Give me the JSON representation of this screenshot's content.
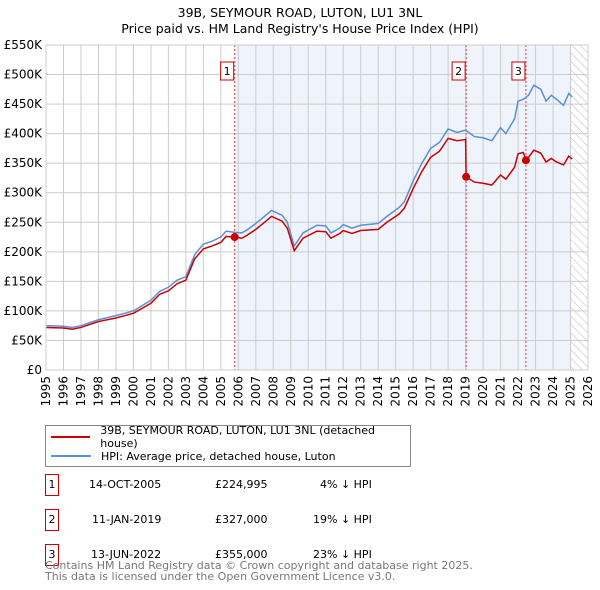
{
  "title": "39B, SEYMOUR ROAD, LUTON, LU1 3NL",
  "subtitle": "Price paid vs. HM Land Registry's House Price Index (HPI)",
  "chart_data": {
    "type": "line",
    "title": "39B, SEYMOUR ROAD, LUTON, LU1 3NL",
    "subtitle": "Price paid vs. HM Land Registry's House Price Index (HPI)",
    "xlim": [
      1995,
      2026
    ],
    "ylim": [
      0,
      550000
    ],
    "yticks": [
      0,
      50000,
      100000,
      150000,
      200000,
      250000,
      300000,
      350000,
      400000,
      450000,
      500000,
      550000
    ],
    "ytick_labels": [
      "£0",
      "£50K",
      "£100K",
      "£150K",
      "£200K",
      "£250K",
      "£300K",
      "£350K",
      "£400K",
      "£450K",
      "£500K",
      "£550K"
    ],
    "xticks": [
      "1995",
      "1996",
      "1997",
      "1998",
      "1999",
      "2000",
      "2001",
      "2002",
      "2003",
      "2004",
      "2005",
      "2006",
      "2007",
      "2008",
      "2009",
      "2010",
      "2011",
      "2012",
      "2013",
      "2014",
      "2015",
      "2016",
      "2017",
      "2018",
      "2019",
      "2020",
      "2021",
      "2022",
      "2023",
      "2024",
      "2025",
      "2026"
    ],
    "grid": true,
    "series": [
      {
        "name": "HPI: Average price, detached house, Luton",
        "color": "#5b8fd4",
        "x": [
          1995,
          1996,
          1996.5,
          1997,
          1998,
          1999,
          2000,
          2001,
          2001.5,
          2002,
          2002.5,
          2003,
          2003.5,
          2004,
          2004.5,
          2005,
          2005.3,
          2005.8,
          2006.2,
          2006.5,
          2007,
          2007.5,
          2007.9,
          2008.5,
          2008.8,
          2009.2,
          2009.7,
          2010.5,
          2011,
          2011.3,
          2011.8,
          2012,
          2012.5,
          2013,
          2014,
          2014.5,
          2015.2,
          2015.5,
          2016,
          2016.5,
          2017,
          2017.5,
          2018,
          2018.5,
          2019,
          2019.5,
          2020,
          2020.5,
          2021,
          2021.3,
          2021.8,
          2022,
          2022.3,
          2022.6,
          2022.9,
          2023.3,
          2023.6,
          2023.9,
          2024.2,
          2024.6,
          2024.9,
          2025.1
        ],
        "y": [
          75000,
          74000,
          72000,
          75000,
          85000,
          92000,
          100000,
          118000,
          133000,
          140000,
          152000,
          158000,
          195000,
          213000,
          218000,
          225000,
          235000,
          233000,
          232000,
          237000,
          248000,
          260000,
          270000,
          262000,
          250000,
          210000,
          232000,
          245000,
          244000,
          232000,
          240000,
          246000,
          240000,
          245000,
          248000,
          260000,
          275000,
          285000,
          320000,
          350000,
          375000,
          385000,
          408000,
          402000,
          406000,
          395000,
          393000,
          388000,
          410000,
          400000,
          425000,
          455000,
          458000,
          465000,
          482000,
          475000,
          455000,
          465000,
          458000,
          448000,
          468000,
          462000
        ]
      },
      {
        "name": "39B, SEYMOUR ROAD, LUTON, LU1 3NL (detached house)",
        "color": "#cc0000",
        "x": [
          1995,
          1996,
          1996.5,
          1997,
          1998,
          1999,
          2000,
          2001,
          2001.5,
          2002,
          2002.5,
          2003,
          2003.5,
          2004,
          2004.5,
          2005,
          2005.3,
          2005.79,
          2006.2,
          2006.5,
          2007,
          2007.5,
          2007.9,
          2008.5,
          2008.8,
          2009.2,
          2009.7,
          2010.5,
          2011,
          2011.3,
          2011.8,
          2012,
          2012.5,
          2013,
          2014,
          2014.5,
          2015.2,
          2015.5,
          2016,
          2016.5,
          2017,
          2017.5,
          2018,
          2018.5,
          2019.0,
          2019.03,
          2019.5,
          2020,
          2020.5,
          2021,
          2021.3,
          2021.8,
          2022,
          2022.3,
          2022.45,
          2022.6,
          2022.9,
          2023.3,
          2023.6,
          2023.9,
          2024.2,
          2024.6,
          2024.9,
          2025.1
        ],
        "y": [
          72000,
          71000,
          69000,
          72000,
          82000,
          88000,
          96000,
          113000,
          128000,
          134000,
          146000,
          152000,
          188000,
          205000,
          210000,
          216000,
          226000,
          224995,
          223000,
          228000,
          238000,
          250000,
          260000,
          252000,
          240000,
          202000,
          223000,
          235000,
          234000,
          223000,
          231000,
          236000,
          231000,
          236000,
          238000,
          250000,
          264000,
          274000,
          307000,
          336000,
          360000,
          370000,
          392000,
          388000,
          390000,
          327000,
          318000,
          316000,
          313000,
          330000,
          323000,
          343000,
          366000,
          368000,
          355000,
          360000,
          372000,
          367000,
          352000,
          358000,
          352000,
          347000,
          362000,
          357000
        ]
      }
    ],
    "sales": [
      {
        "label": "1",
        "x": 2005.79,
        "y": 224995,
        "date": "14-OCT-2005",
        "price": "£224,995",
        "hpi": "4% ↓ HPI"
      },
      {
        "label": "2",
        "x": 2019.03,
        "y": 327000,
        "date": "11-JAN-2019",
        "price": "£327,000",
        "hpi": "19% ↓ HPI"
      },
      {
        "label": "3",
        "x": 2022.45,
        "y": 355000,
        "date": "13-JUN-2022",
        "price": "£355,000",
        "hpi": "23% ↓ HPI"
      }
    ],
    "shade_from": 2005.79,
    "hatch_from": 2025.0,
    "legend_placement": "below"
  },
  "footer": [
    "Contains HM Land Registry data © Crown copyright and database right 2025.",
    "This data is licensed under the Open Government Licence v3.0."
  ]
}
